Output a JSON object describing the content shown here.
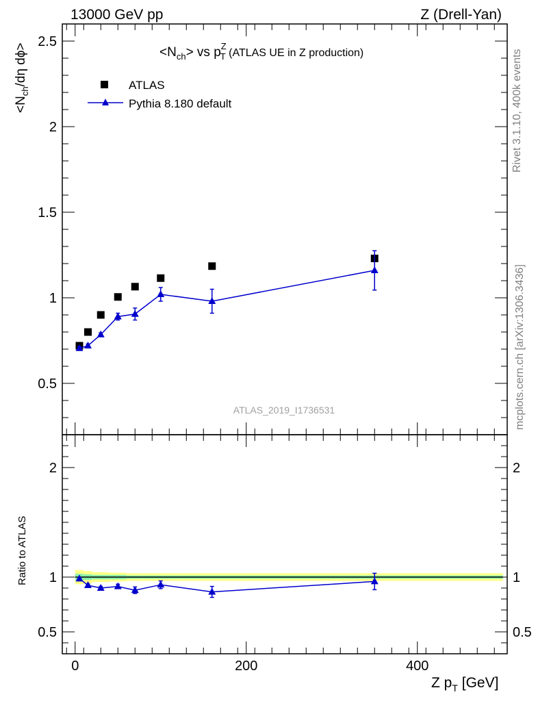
{
  "header": {
    "left": "13000 GeV pp",
    "right": "Z (Drell-Yan)"
  },
  "plot_title": {
    "main": "<N",
    "main_sub": "ch",
    "mid": "> vs p",
    "pt_sup": "Z",
    "pt_sub": "T",
    "tail": " (ATLAS UE in Z production)"
  },
  "side_labels": {
    "rivet": "Rivet 3.1.10,  400k events",
    "mcplots": "mcplots.cern.ch [arXiv:1306.3436]"
  },
  "watermark": "ATLAS_2019_I1736531",
  "legend": {
    "data_label": "ATLAS",
    "mc_label": "Pythia 8.180 default"
  },
  "ylabel_main": {
    "a": "<N",
    "sub": "ch",
    "b": "/dη dϕ>"
  },
  "ylabel_ratio": "Ratio to ATLAS",
  "xlabel": {
    "a": "Z p",
    "sub": "T",
    "b": " [GeV]"
  },
  "colors": {
    "data": "#000000",
    "mc": "#0000cc",
    "band_inner": "#88eeaa",
    "band_outer": "#ffff88"
  },
  "chart_data": [
    {
      "type": "scatter",
      "panel": "main",
      "x": [
        5,
        15,
        30,
        50,
        70,
        100,
        160,
        350
      ],
      "xlim": [
        -15,
        505
      ],
      "ylim": [
        0.2,
        2.6
      ],
      "yticks": [
        0.5,
        1,
        1.5,
        2,
        2.5
      ],
      "ytick_labels": [
        "0.5",
        "1",
        "1.5",
        "2",
        "2.5"
      ],
      "series": [
        {
          "name": "ATLAS",
          "marker": "square",
          "x": [
            5,
            15,
            30,
            50,
            70,
            100,
            160,
            350
          ],
          "values": [
            0.72,
            0.8,
            0.9,
            1.005,
            1.065,
            1.115,
            1.185,
            1.23
          ],
          "errors": [
            0.0,
            0.0,
            0.0,
            0.0,
            0.0,
            0.0,
            0.0,
            0.0
          ]
        },
        {
          "name": "Pythia 8.180 default",
          "marker": "triangle",
          "line": true,
          "x": [
            5,
            15,
            30,
            50,
            70,
            100,
            160,
            350
          ],
          "values": [
            0.705,
            0.72,
            0.785,
            0.89,
            0.905,
            1.02,
            0.98,
            1.16
          ],
          "errors": [
            0.01,
            0.01,
            0.01,
            0.02,
            0.035,
            0.04,
            0.07,
            0.115
          ]
        }
      ]
    },
    {
      "type": "scatter",
      "panel": "ratio",
      "xlim": [
        -15,
        505
      ],
      "ylim": [
        0.3,
        2.3
      ],
      "yticks": [
        0.5,
        1,
        2
      ],
      "ytick_labels": [
        "0.5",
        "1",
        "2"
      ],
      "xticks": [
        0,
        200,
        400
      ],
      "xtick_labels": [
        "0",
        "200",
        "400"
      ],
      "band": {
        "edges": [
          0,
          10,
          20,
          40,
          60,
          80,
          120,
          200,
          500
        ],
        "inner": [
          0.03,
          0.025,
          0.02,
          0.02,
          0.015,
          0.015,
          0.015,
          0.015
        ],
        "outer": [
          0.065,
          0.055,
          0.045,
          0.04,
          0.035,
          0.035,
          0.035,
          0.035
        ]
      },
      "series": [
        {
          "name": "Pythia 8.180 default",
          "marker": "triangle",
          "line": true,
          "x": [
            5,
            15,
            30,
            50,
            70,
            100,
            160,
            350
          ],
          "values": [
            0.985,
            0.925,
            0.9,
            0.915,
            0.88,
            0.93,
            0.865,
            0.96
          ],
          "errors": [
            0.01,
            0.012,
            0.015,
            0.02,
            0.03,
            0.035,
            0.05,
            0.075
          ]
        }
      ]
    }
  ]
}
